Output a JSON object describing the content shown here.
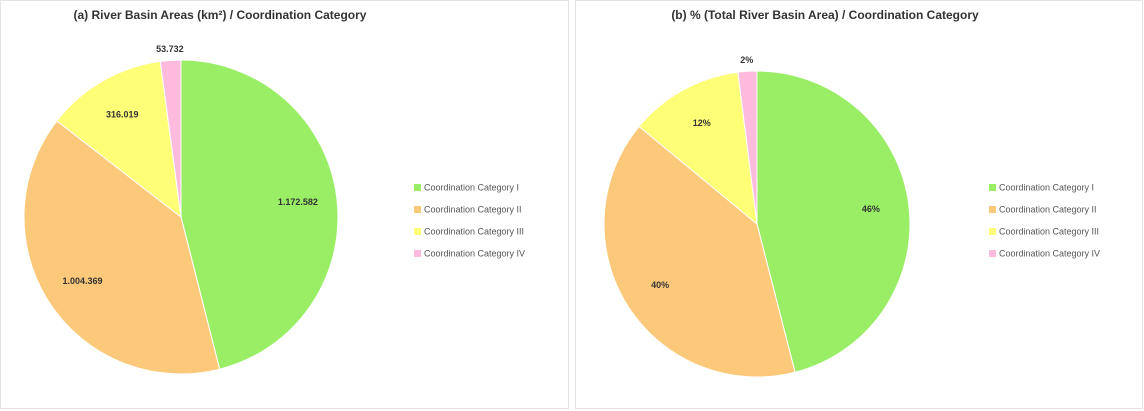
{
  "chart_data": [
    {
      "type": "pie",
      "title": "(a) River Basin Areas (km²) / Coordination Category",
      "categories": [
        "Coordination Category I",
        "Coordination Category II",
        "Coordination Category III",
        "Coordination Category IV"
      ],
      "values": [
        1172582,
        1004369,
        316019,
        53732
      ],
      "value_labels": [
        "1.172.582",
        "1.004.369",
        "316.019",
        "53.732"
      ],
      "colors": [
        "#99ee66",
        "#fcc97a",
        "#ffff77",
        "#ffbbdd"
      ],
      "legend": "right"
    },
    {
      "type": "pie",
      "title": "(b) % (Total River Basin Area) / Coordination Category",
      "categories": [
        "Coordination Category I",
        "Coordination Category II",
        "Coordination Category III",
        "Coordination Category IV"
      ],
      "values": [
        46,
        40,
        12,
        2
      ],
      "value_labels": [
        "46%",
        "40%",
        "12%",
        "2%"
      ],
      "colors": [
        "#99ee66",
        "#fcc97a",
        "#ffff77",
        "#ffbbdd"
      ],
      "legend": "right"
    }
  ]
}
